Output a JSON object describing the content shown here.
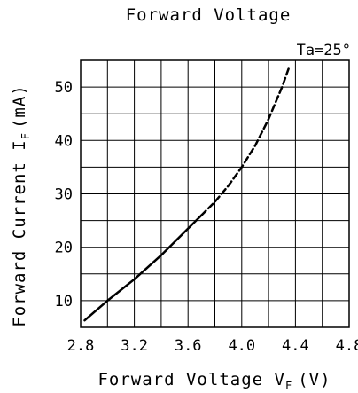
{
  "chart_data": {
    "type": "line",
    "title": "Forward Voltage",
    "annotation": "Ta=25°",
    "xlabel": {
      "prefix": "Forward Voltage V",
      "subscript": "F",
      "suffix": "(V)"
    },
    "ylabel": {
      "prefix": "Forward Current I",
      "subscript": "F",
      "suffix": "(mA)"
    },
    "xlim": [
      2.8,
      4.8
    ],
    "ylim": [
      5,
      55
    ],
    "x_ticks": [
      "2.8",
      "3.2",
      "3.6",
      "4.0",
      "4.4",
      "4.8"
    ],
    "y_ticks": [
      "10",
      "20",
      "30",
      "40",
      "50"
    ],
    "grid": true,
    "series": [
      {
        "style": "solid",
        "color": "#000000",
        "points": [
          [
            2.83,
            6.3
          ],
          [
            3.0,
            10.0
          ],
          [
            3.2,
            14.0
          ],
          [
            3.4,
            18.5
          ],
          [
            3.6,
            23.5
          ],
          [
            3.7,
            26.0
          ]
        ]
      },
      {
        "style": "dashed",
        "color": "#000000",
        "points": [
          [
            3.7,
            26.0
          ],
          [
            3.8,
            28.5
          ],
          [
            3.9,
            31.5
          ],
          [
            4.0,
            35.0
          ],
          [
            4.1,
            39.0
          ],
          [
            4.2,
            44.0
          ],
          [
            4.3,
            50.0
          ],
          [
            4.35,
            53.5
          ]
        ]
      }
    ]
  }
}
